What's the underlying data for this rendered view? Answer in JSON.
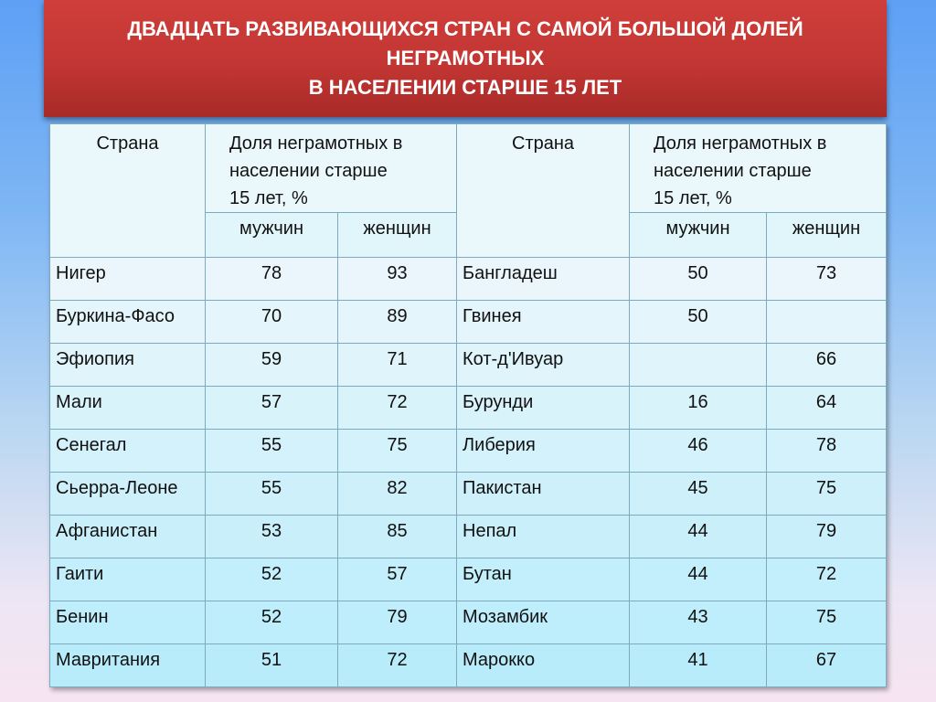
{
  "title": {
    "line1": "ДВАДЦАТЬ РАЗВИВАЮЩИХСЯ СТРАН С САМОЙ БОЛЬШОЙ ДОЛЕЙ",
    "line2": "НЕГРАМОТНЫХ",
    "line3": "В НАСЕЛЕНИИ СТАРШЕ 15 ЛЕТ"
  },
  "headers": {
    "country": "Страна",
    "share_line1": "Доля неграмотных в",
    "share_line2": "населении старше",
    "share_line3": "15 лет, %",
    "men": "мужчин",
    "women": "женщин"
  },
  "rows": [
    {
      "c1": "Нигер",
      "m1": "78",
      "w1": "93",
      "c2": "Бангладеш",
      "m2": "50",
      "w2": "73"
    },
    {
      "c1": "Буркина-Фасо",
      "m1": "70",
      "w1": "89",
      "c2": "Гвинея",
      "m2": "50",
      "w2": ""
    },
    {
      "c1": "Эфиопия",
      "m1": "59",
      "w1": "71",
      "c2": "Кот-д'Ивуар",
      "m2": "",
      "w2": "66"
    },
    {
      "c1": "Мали",
      "m1": "57",
      "w1": "72",
      "c2": "Бурунди",
      "m2": "16",
      "w2": "64"
    },
    {
      "c1": "Сенегал",
      "m1": "55",
      "w1": "75",
      "c2": "Либерия",
      "m2": "46",
      "w2": "78"
    },
    {
      "c1": "Сьерра-Леоне",
      "m1": "55",
      "w1": "82",
      "c2": "Пакистан",
      "m2": "45",
      "w2": "75"
    },
    {
      "c1": "Афганистан",
      "m1": "53",
      "w1": "85",
      "c2": "Непал",
      "m2": "44",
      "w2": "79"
    },
    {
      "c1": "Гаити",
      "m1": "52",
      "w1": "57",
      "c2": "Бутан",
      "m2": "44",
      "w2": "72"
    },
    {
      "c1": "Бенин",
      "m1": "52",
      "w1": "79",
      "c2": "Мозамбик",
      "m2": "43",
      "w2": "75"
    },
    {
      "c1": "Мавритания",
      "m1": "51",
      "w1": "72",
      "c2": "Марокко",
      "m2": "41",
      "w2": "67"
    }
  ]
}
